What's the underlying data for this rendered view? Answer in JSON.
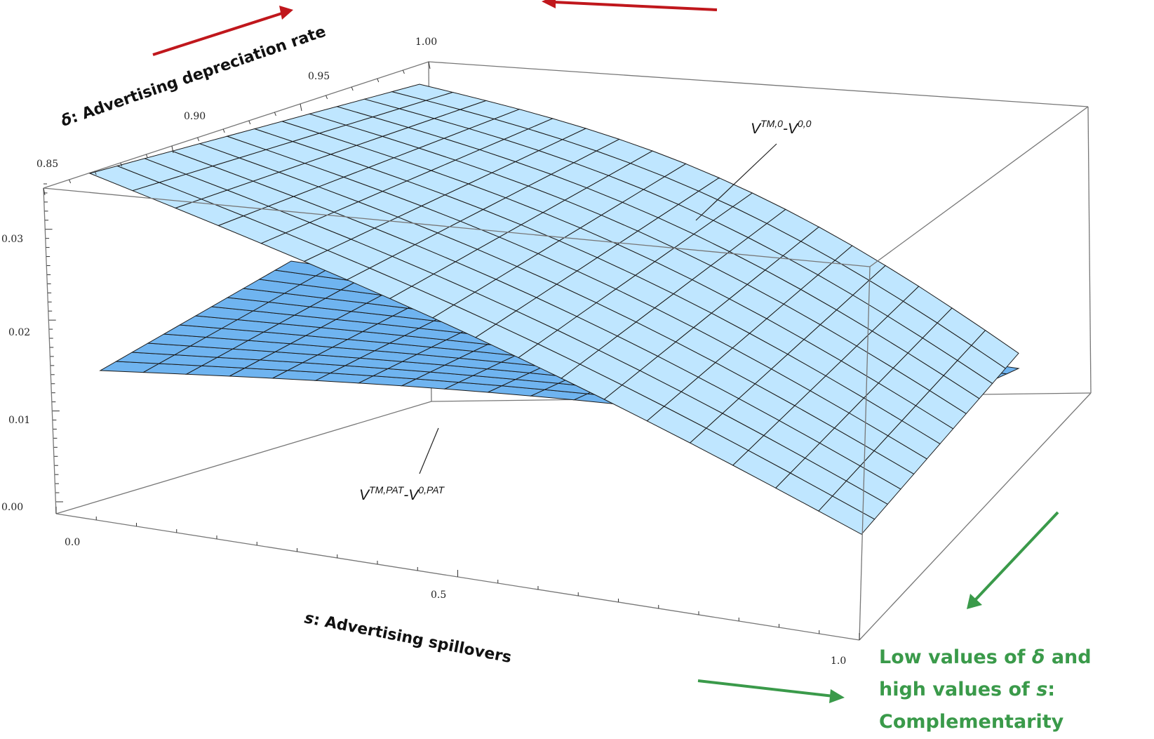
{
  "chart_data": {
    "type": "surface3d",
    "x_axis": {
      "label": "s: Advertising spillovers",
      "ticks": [
        "0.0",
        "0.5",
        "1.0"
      ],
      "range": [
        0,
        1
      ]
    },
    "y_axis": {
      "label": "δ: Advertising depreciation rate",
      "ticks": [
        "0.85",
        "0.90",
        "0.95",
        "1.00"
      ],
      "range": [
        0.85,
        1.0
      ]
    },
    "z_axis": {
      "ticks": [
        "0.00",
        "0.01",
        "0.02",
        "0.03"
      ],
      "range": [
        0,
        0.035
      ]
    },
    "series": [
      {
        "name": "V^{TM,0}-V^{0,0}",
        "label_base": "V",
        "label_sup1": "TM,0",
        "label_mid": "-V",
        "label_sup2": "0,0",
        "color": "#bfe6ff"
      },
      {
        "name": "V^{TM,PAT}-V^{0,PAT}",
        "label_base": "V",
        "label_sup1": "TM,PAT",
        "label_mid": "-V",
        "label_sup2": "0,PAT",
        "color": "#6fb4f0"
      }
    ],
    "annotation": {
      "line1_a": "Low values of ",
      "line1_b": "δ",
      "line1_c": " and",
      "line2_a": "high values of ",
      "line2_b": "s",
      "line2_c": ":",
      "line3": "Complementarity",
      "arrow_color": "#3a9a4a"
    },
    "top_arrow_color": "#c0171c"
  }
}
